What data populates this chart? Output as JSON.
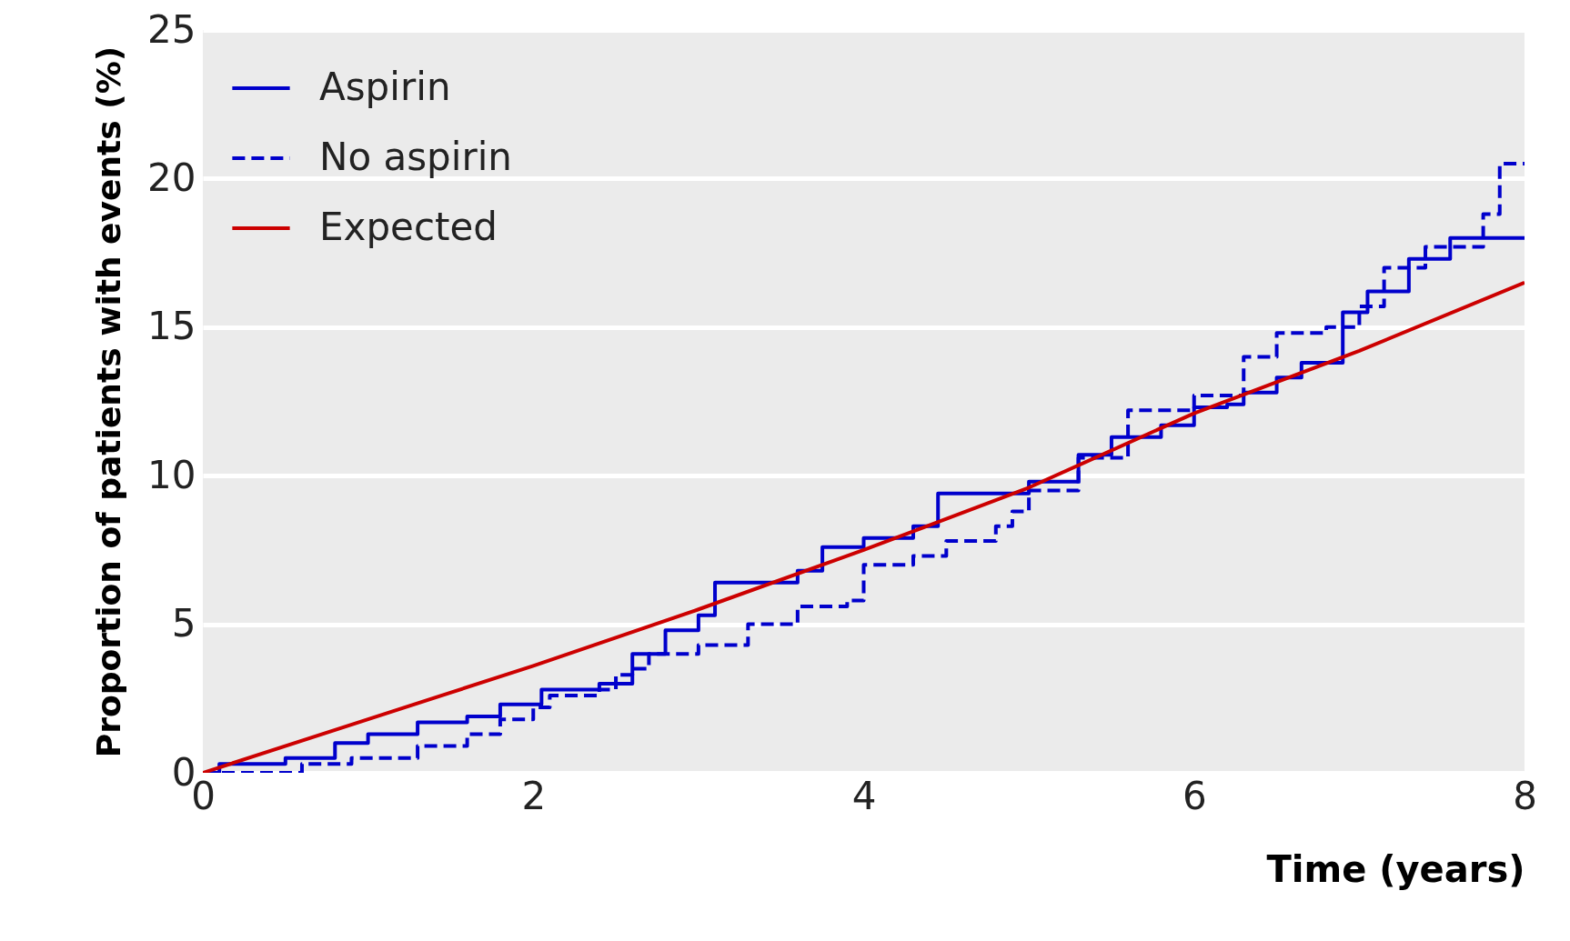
{
  "chart_data": {
    "type": "line",
    "xlabel": "Time (years)",
    "ylabel": "Proportion of patients with events (%)",
    "xlim": [
      0,
      8
    ],
    "xticks": [
      0,
      2,
      4,
      6,
      8
    ],
    "ylim": [
      0,
      25
    ],
    "yticks": [
      0,
      5,
      10,
      15,
      20,
      25
    ],
    "grid": "y",
    "legend": "top left",
    "series": [
      {
        "name": "Aspirin",
        "type": "step",
        "color": "#0000cc",
        "line_style": "solid",
        "x": [
          0,
          0.1,
          0.5,
          0.8,
          1.0,
          1.3,
          1.6,
          1.8,
          2.0,
          2.05,
          2.4,
          2.6,
          2.8,
          3.0,
          3.1,
          3.4,
          3.6,
          3.75,
          4.0,
          4.3,
          4.45,
          4.9,
          5.0,
          5.3,
          5.5,
          5.8,
          6.0,
          6.2,
          6.3,
          6.5,
          6.65,
          6.85,
          6.9,
          7.05,
          7.3,
          7.55,
          8.0
        ],
        "values": [
          0,
          0.3,
          0.5,
          1.0,
          1.3,
          1.7,
          1.9,
          2.3,
          2.3,
          2.8,
          3.0,
          4.0,
          4.8,
          5.3,
          6.4,
          6.4,
          6.8,
          7.6,
          7.9,
          8.3,
          9.4,
          9.4,
          9.8,
          10.7,
          11.3,
          11.7,
          12.3,
          12.4,
          12.8,
          13.3,
          13.8,
          13.8,
          15.5,
          16.2,
          17.3,
          18.0,
          18.0
        ]
      },
      {
        "name": "No aspirin",
        "type": "step",
        "color": "#0000cc",
        "line_style": "dashed",
        "x": [
          0,
          0.5,
          0.6,
          0.9,
          1.3,
          1.6,
          1.8,
          2.0,
          2.1,
          2.4,
          2.5,
          2.6,
          2.7,
          3.0,
          3.3,
          3.6,
          3.9,
          4.0,
          4.3,
          4.5,
          4.8,
          4.9,
          5.0,
          5.3,
          5.6,
          6.0,
          6.3,
          6.5,
          6.8,
          7.0,
          7.15,
          7.4,
          7.75,
          7.85,
          8.0
        ],
        "values": [
          0,
          0,
          0.3,
          0.5,
          0.9,
          1.3,
          1.8,
          2.2,
          2.6,
          2.8,
          3.3,
          3.5,
          4.0,
          4.3,
          5.0,
          5.6,
          5.8,
          7.0,
          7.3,
          7.8,
          8.3,
          8.8,
          9.5,
          10.6,
          12.2,
          12.7,
          14.0,
          14.8,
          15.0,
          15.7,
          17.0,
          17.7,
          18.8,
          20.5,
          20.5
        ]
      },
      {
        "name": "Expected",
        "color": "#cc0000",
        "line_style": "solid",
        "x": [
          0,
          1,
          2,
          3,
          4,
          5,
          6,
          7,
          8
        ],
        "values": [
          0,
          1.8,
          3.6,
          5.5,
          7.5,
          9.6,
          12.1,
          14.2,
          16.5
        ]
      }
    ]
  }
}
